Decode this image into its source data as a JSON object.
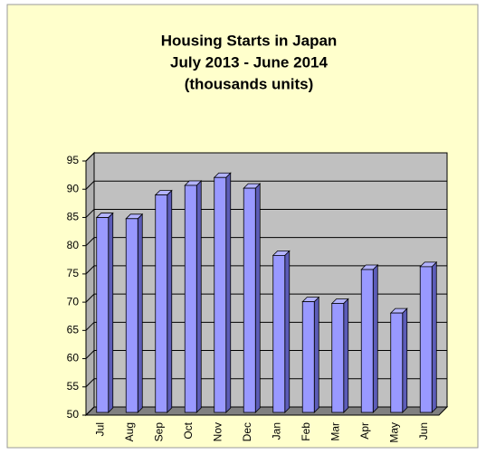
{
  "chart_data": {
    "type": "bar3d",
    "title": [
      "Housing Starts in Japan",
      "July 2013 - June 2014",
      "(thousands units)"
    ],
    "categories": [
      "Jul",
      "Aug",
      "Sep",
      "Oct",
      "Nov",
      "Dec",
      "Jan",
      "Feb",
      "Mar",
      "Apr",
      "May",
      "Jun"
    ],
    "values": [
      84.5,
      84.3,
      88.5,
      90.2,
      91.6,
      89.7,
      77.8,
      69.6,
      69.3,
      75.3,
      67.6,
      75.8
    ],
    "color": "#9999ff",
    "ylim": [
      50,
      95
    ],
    "yticks": [
      50,
      55,
      60,
      65,
      70,
      75,
      80,
      85,
      90,
      95
    ],
    "grid": true
  }
}
